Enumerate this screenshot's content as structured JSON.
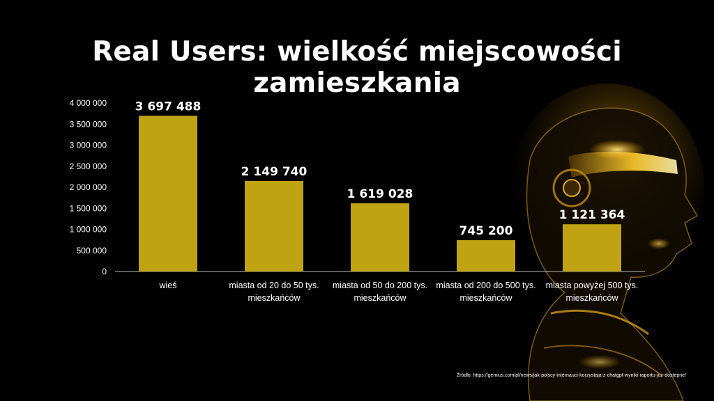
{
  "slide": {
    "title": "Real Users: wielkość miejscowości zamieszkania",
    "source": "Źródło: https://gemius.com/pl/news/jak-polscy-internauci-korzystaja-z-chatgpt-wyniki-raportu-juz-dostepne/"
  },
  "colors": {
    "bar": "#bfa312",
    "background": "#000000",
    "text": "#ffffff"
  },
  "chart_data": {
    "type": "bar",
    "title": "",
    "xlabel": "",
    "ylabel": "",
    "categories": [
      [
        "wieś"
      ],
      [
        "miasta od 20 do 50 tys.",
        "mieszkańców"
      ],
      [
        "miasta od 50 do 200 tys.",
        "mieszkańców"
      ],
      [
        "miasta od 200 do 500 tys.",
        "mieszkańców"
      ],
      [
        "miasta powyżej 500 tys.",
        "mieszkańców"
      ]
    ],
    "values": [
      3697488,
      2149740,
      1619028,
      745200,
      1121364
    ],
    "value_labels": [
      "3 697 488",
      "2 149 740",
      "1 619 028",
      "745 200",
      "1 121 364"
    ],
    "ylim": [
      0,
      4000000
    ],
    "yticks": [
      0,
      500000,
      1000000,
      1500000,
      2000000,
      2500000,
      3000000,
      3500000,
      4000000
    ],
    "ytick_labels": [
      "0",
      "500 000",
      "1 000 000",
      "1 500 000",
      "2 000 000",
      "2 500 000",
      "3 000 000",
      "3 500 000",
      "4 000 000"
    ],
    "grid": false,
    "legend": "none"
  }
}
